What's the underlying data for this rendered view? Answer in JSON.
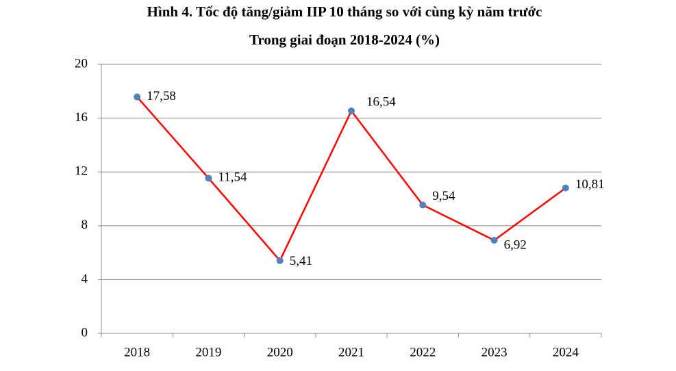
{
  "chart_data": {
    "type": "line",
    "title": "Hình 4. Tốc độ tăng/giảm IIP 10 tháng so với cùng kỳ năm trước",
    "subtitle": "Trong giai đoạn 2018-2024 (%)",
    "categories": [
      "2018",
      "2019",
      "2020",
      "2021",
      "2022",
      "2023",
      "2024"
    ],
    "series": [
      {
        "name": "IIP",
        "color": "#ff0000",
        "marker_color": "#4f81bd",
        "values": [
          17.58,
          11.54,
          5.41,
          16.54,
          9.54,
          6.92,
          10.81
        ],
        "value_labels": [
          "17,58",
          "11,54",
          "5,41",
          "16,54",
          "9,54",
          "6,92",
          "10,81"
        ]
      }
    ],
    "ylim": [
      0,
      20
    ],
    "yticks": [
      0,
      4,
      8,
      12,
      16,
      20
    ],
    "grid": true
  }
}
